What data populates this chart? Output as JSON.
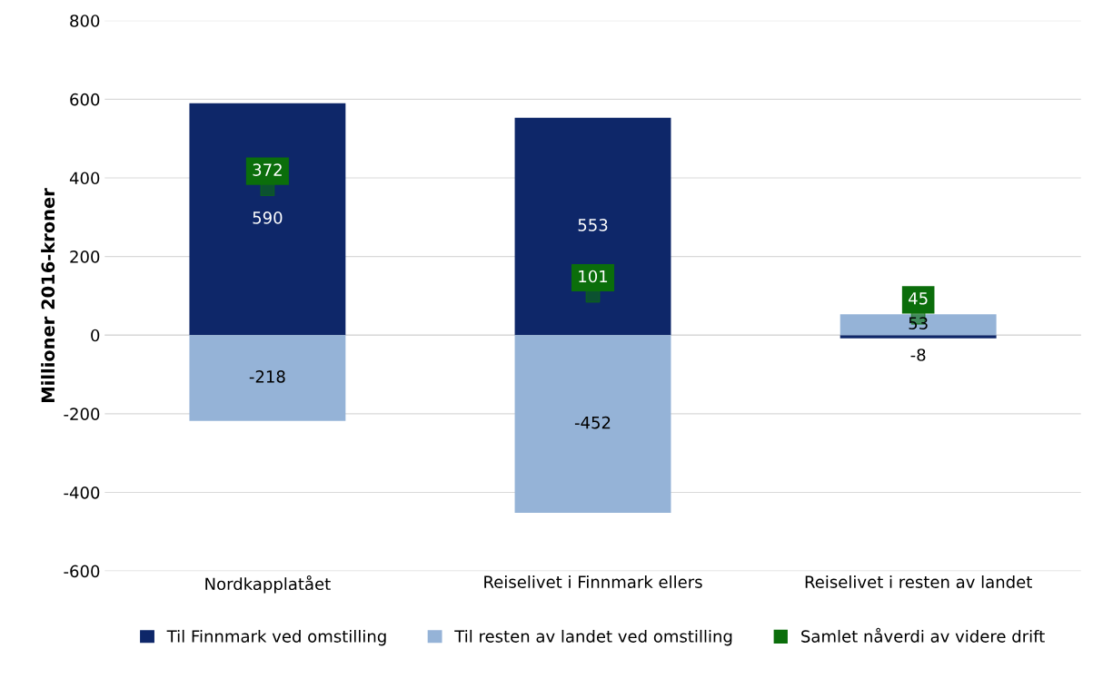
{
  "chart_data": {
    "type": "bar",
    "stacked": true,
    "ylabel": "Millioner 2016-kroner",
    "categories": [
      "Nordkapplatået",
      "Reiselivet i Finnmark ellers",
      "Reiselivet i resten av landet"
    ],
    "series": [
      {
        "name": "Til Finnmark ved omstilling",
        "color": "#0e2769",
        "values": [
          590,
          553,
          -8
        ]
      },
      {
        "name": "Til resten av landet ved omstilling",
        "color": "#95b3d7",
        "values": [
          -218,
          -452,
          53
        ]
      },
      {
        "name": "Samlet nåverdi av videre drift",
        "type": "scatter",
        "color": "#0b6e0b",
        "marker": "square",
        "x": [
          "Nordkapplatået",
          "Reiselivet i Finnmark ellers",
          "Reiselivet i resten av landet"
        ],
        "values": [
          372,
          101,
          45
        ]
      }
    ],
    "data_labels": true,
    "ylim": [
      -600,
      800
    ],
    "yticks": [
      -600,
      -400,
      -200,
      0,
      200,
      400,
      600,
      800
    ],
    "grid": "y",
    "legend": "bottom"
  }
}
